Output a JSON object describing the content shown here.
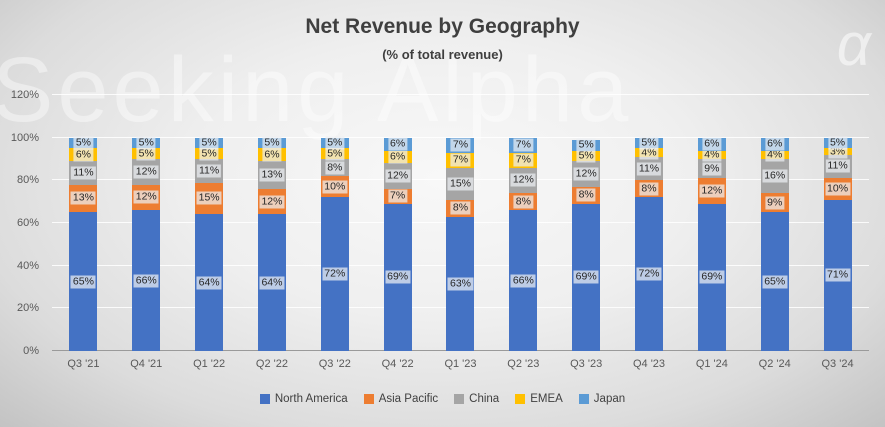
{
  "title": "Net Revenue by Geography",
  "subtitle": "(% of total revenue)",
  "watermark": {
    "text": "Seeking Alpha",
    "alpha_glyph": "α"
  },
  "chart_data": {
    "type": "bar",
    "stacked": true,
    "title": "Net Revenue by Geography",
    "subtitle": "(% of total revenue)",
    "categories": [
      "Q3 '21",
      "Q4 '21",
      "Q1 '22",
      "Q2 '22",
      "Q3 '22",
      "Q4 '22",
      "Q1 '23",
      "Q2 '23",
      "Q3 '23",
      "Q4 '23",
      "Q1 '24",
      "Q2 '24",
      "Q3 '24"
    ],
    "series": [
      {
        "name": "North America",
        "color": "#4472C4",
        "values": [
          65,
          66,
          64,
          64,
          72,
          69,
          63,
          66,
          69,
          72,
          69,
          65,
          71
        ]
      },
      {
        "name": "Asia Pacific",
        "color": "#ED7D31",
        "values": [
          13,
          12,
          15,
          12,
          10,
          7,
          8,
          8,
          8,
          8,
          12,
          9,
          10
        ]
      },
      {
        "name": "China",
        "color": "#A5A5A5",
        "values": [
          11,
          12,
          11,
          13,
          8,
          12,
          15,
          12,
          12,
          11,
          9,
          16,
          11
        ]
      },
      {
        "name": "EMEA",
        "color": "#FFC000",
        "values": [
          6,
          5,
          5,
          6,
          5,
          6,
          7,
          7,
          5,
          4,
          4,
          4,
          3
        ]
      },
      {
        "name": "Japan",
        "color": "#5B9BD5",
        "values": [
          5,
          5,
          5,
          5,
          5,
          6,
          7,
          7,
          5,
          5,
          6,
          6,
          5
        ]
      }
    ],
    "value_suffix": "%",
    "ylim": [
      0,
      120
    ],
    "yticks": [
      "0%",
      "20%",
      "40%",
      "60%",
      "80%",
      "100%",
      "120%"
    ],
    "grid": true,
    "legend_position": "bottom",
    "data_labels": true
  }
}
